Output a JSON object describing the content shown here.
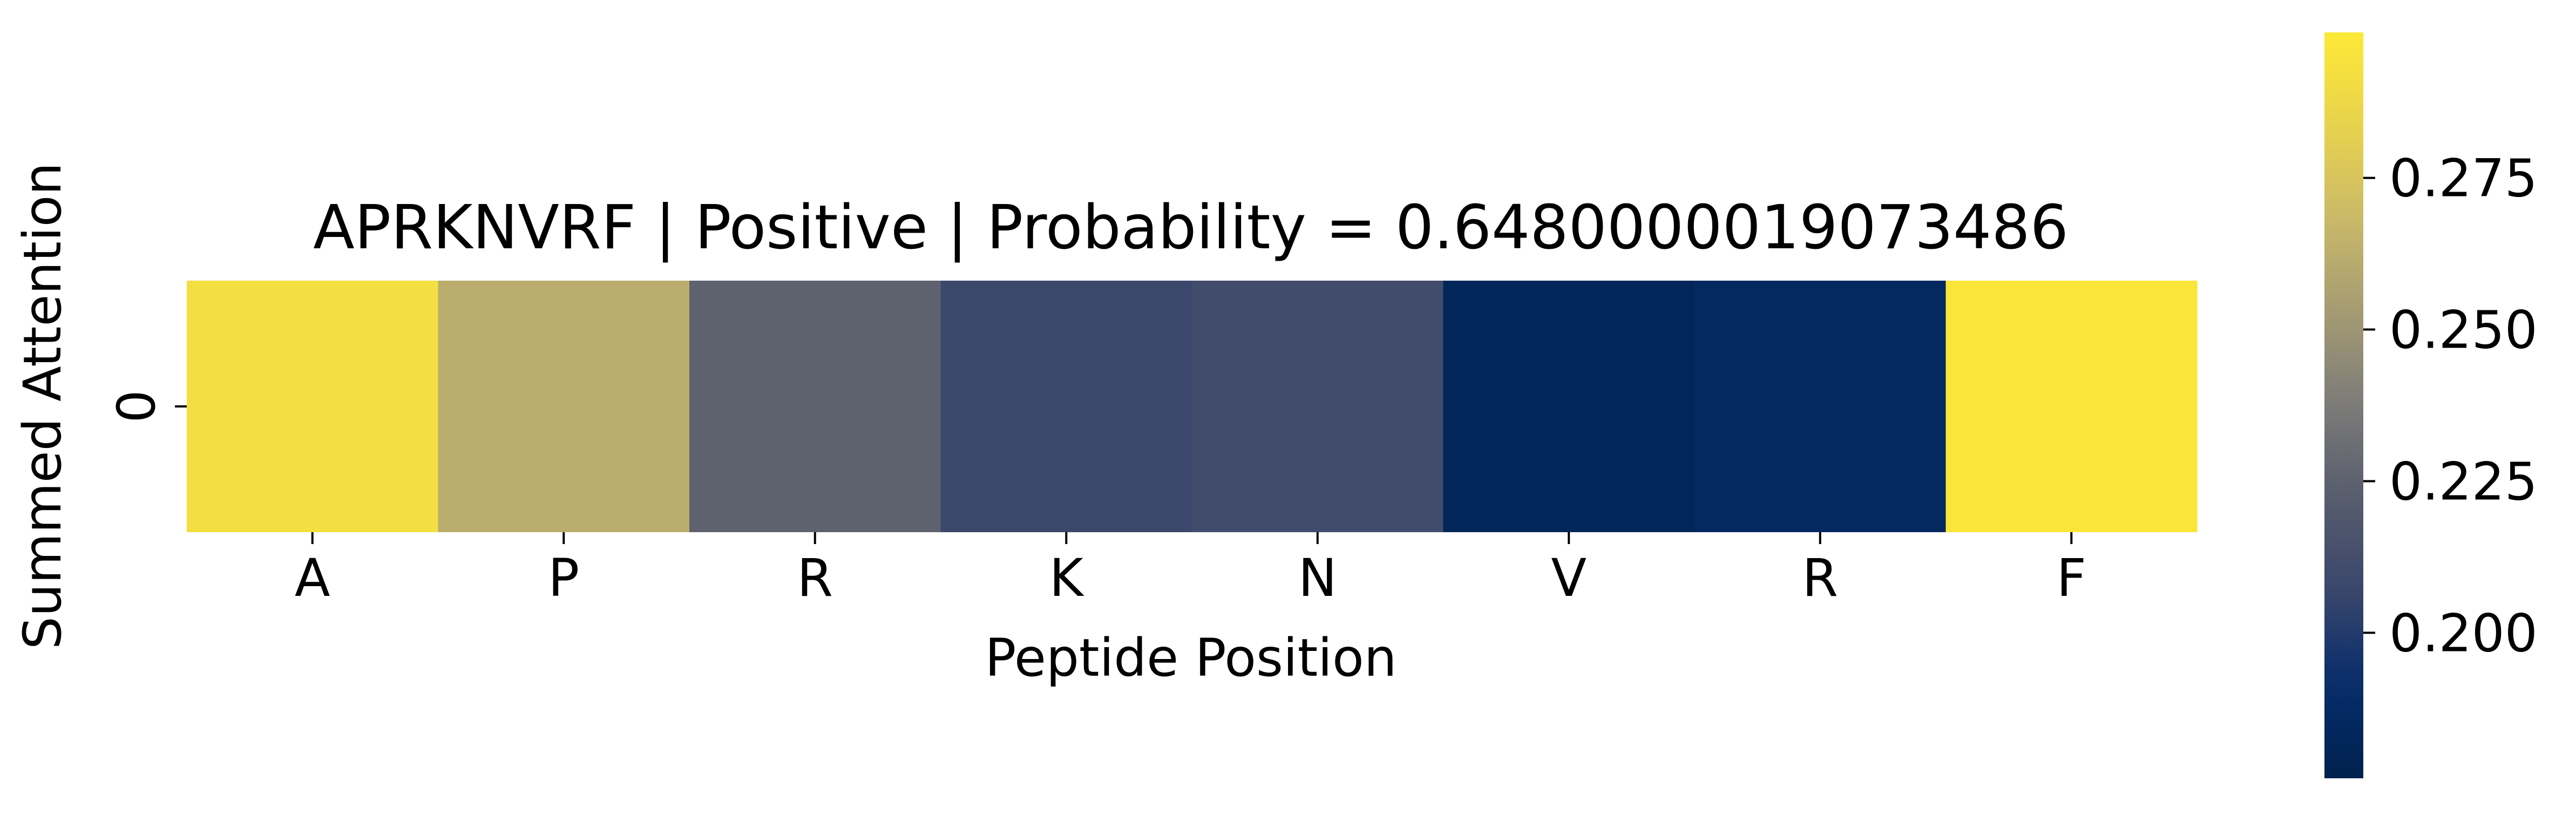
{
  "chart_data": {
    "type": "heatmap",
    "title": "APRKNVRF | Positive | Probability = 0.6480000019073486",
    "xlabel": "Peptide Position",
    "ylabel": "Summed Attention",
    "x_tick_labels": [
      "A",
      "P",
      "R",
      "K",
      "N",
      "V",
      "R",
      "F"
    ],
    "y_tick_labels": [
      "0"
    ],
    "values": [
      [
        0.292,
        0.262,
        0.225,
        0.208,
        0.211,
        0.182,
        0.186,
        0.297
      ]
    ],
    "colormap": "cividis",
    "colorbar": {
      "range": [
        0.176,
        0.299
      ],
      "ticks": [
        0.2,
        0.225,
        0.25,
        0.275
      ],
      "tick_labels": [
        "0.200",
        "0.225",
        "0.250",
        "0.275"
      ]
    }
  }
}
